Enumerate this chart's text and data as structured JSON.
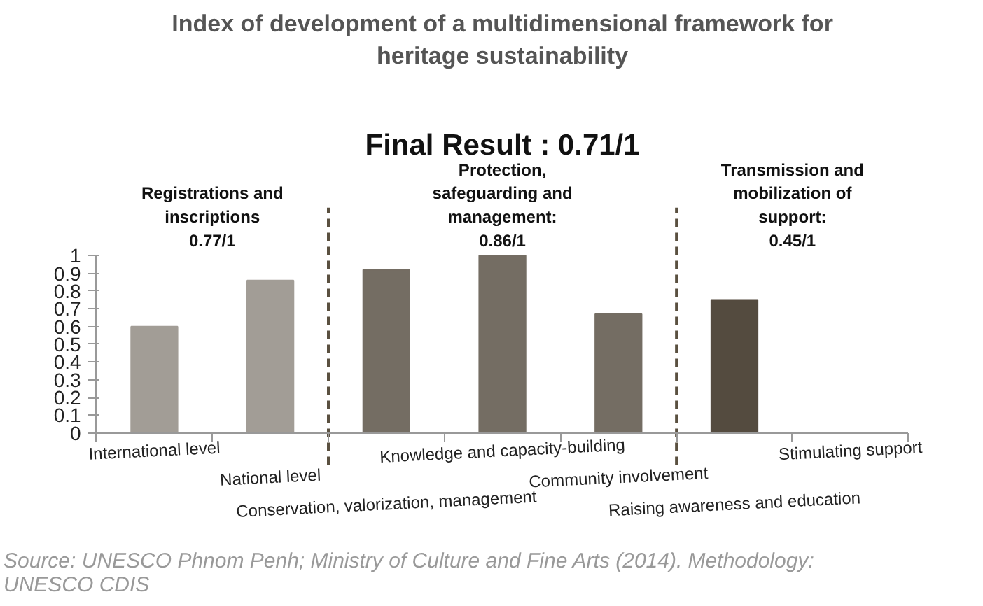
{
  "chart_data": {
    "type": "bar",
    "title": "Index of development of a multidimensional framework for heritage sustainability",
    "subtitle": "Final Result : 0.71/1",
    "categories": [
      "International level",
      "National level",
      "Conservation, valorization, management",
      "Knowledge and capacity-building",
      "Community involvement",
      "Raising awareness and education",
      "Stimulating support"
    ],
    "values": [
      0.6,
      0.86,
      0.92,
      1.0,
      0.67,
      0.75,
      0
    ],
    "colors": [
      "#a29d96",
      "#a29d96",
      "#746d63",
      "#746d63",
      "#746d63",
      "#544b3f",
      "#544b3f"
    ],
    "ylim": [
      0,
      1
    ],
    "yticks": [
      0,
      0.1,
      0.2,
      0.3,
      0.4,
      0.5,
      0.6,
      0.7,
      0.8,
      0.9,
      1
    ],
    "grid": false,
    "annotations": [
      "Registrations and inscriptions 0.77/1",
      "Protection, safeguarding and management: 0.86/1",
      "Transmission and mobilization of support: 0.45/1",
      "Source: UNESCO Phnom Penh; Ministry of Culture and Fine Arts (2014). Methodology: UNESCO CDIS"
    ]
  }
}
